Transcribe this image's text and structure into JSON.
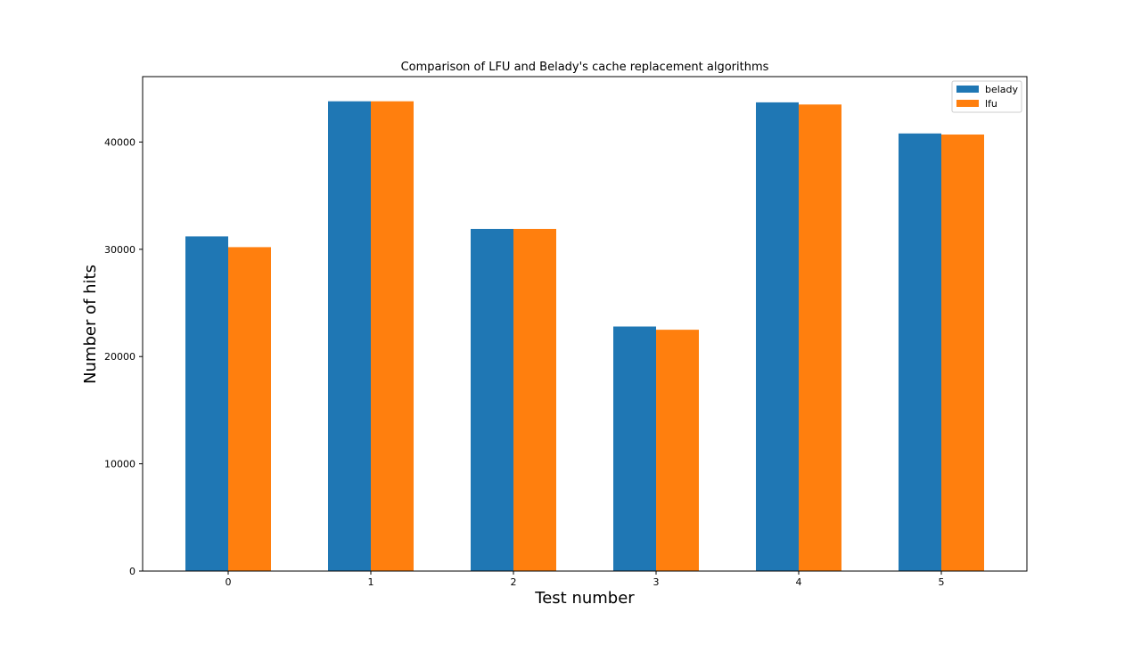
{
  "chart_data": {
    "type": "bar",
    "title": "Comparison of LFU and Belady's cache replacement algorithms",
    "xlabel": "Test number",
    "ylabel": "Number of hits",
    "categories": [
      "0",
      "1",
      "2",
      "3",
      "4",
      "5"
    ],
    "series": [
      {
        "name": "belady",
        "color": "#1f77b4",
        "values": [
          31200,
          43800,
          31900,
          22800,
          43700,
          40800
        ]
      },
      {
        "name": "lfu",
        "color": "#ff7f0e",
        "values": [
          30200,
          43800,
          31900,
          22500,
          43500,
          40700
        ]
      }
    ],
    "ylim": [
      0,
      46100
    ],
    "yticks": [
      0,
      10000,
      20000,
      30000,
      40000
    ],
    "ytick_labels": [
      "0",
      "10000",
      "20000",
      "30000",
      "40000"
    ],
    "grid": false,
    "legend_position": "top-right"
  }
}
